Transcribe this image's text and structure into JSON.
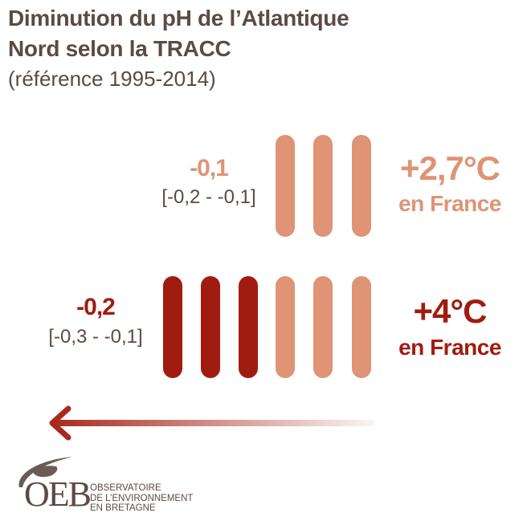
{
  "title_line1": "Diminution du pH de l’Atlantique",
  "title_line2": "Nord selon la TRACC",
  "subtitle": "(référence 1995-2014)",
  "colors": {
    "light": "#DE9475",
    "dark": "#A01C10",
    "text": "#5B4A45"
  },
  "rows": [
    {
      "value": "-0,1",
      "range": "[-0,2 - -0,1]",
      "temp": "+2,7°C",
      "temp_sub": "en France",
      "color": "#DE9475"
    },
    {
      "value": "-0,2",
      "range": "[-0,3 - -0,1]",
      "temp": "+4°C",
      "temp_sub": "en France",
      "color": "#A01C10"
    }
  ],
  "chart_data": {
    "type": "bar",
    "categories": [
      "+2,7°C en France",
      "+4°C en France"
    ],
    "values": [
      -0.1,
      -0.2
    ],
    "ranges": [
      [
        -0.2,
        -0.1
      ],
      [
        -0.3,
        -0.1
      ]
    ],
    "pictogram_units": {
      "base_bars": 3,
      "dark_bars": [
        0,
        3
      ]
    }
  },
  "logo": {
    "acronym": "OEB",
    "line1": "OBSERVATOIRE",
    "line2": "DE L’ENVIRONNEMENT",
    "line3": "EN BRETAGNE"
  }
}
